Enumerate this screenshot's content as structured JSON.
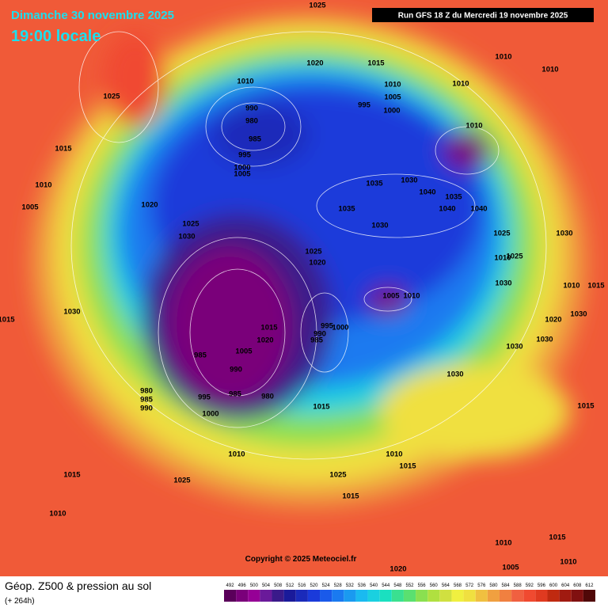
{
  "header": {
    "title": "Dimanche 30 novembre 2025",
    "subtitle": "19:00 locale",
    "run": "Run GFS 18 Z du Mercredi 19 novembre 2025"
  },
  "map": {
    "copyright": "Copyright © 2025 Meteociel.fr",
    "isobar_labels": [
      "1025",
      "1020",
      "1015",
      "1010",
      "1010",
      "1010",
      "1010",
      "1010",
      "1025",
      "990",
      "980",
      "985",
      "995",
      "1000",
      "1005",
      "995",
      "1005",
      "1000",
      "1010",
      "1015",
      "1010",
      "1005",
      "1020",
      "1025",
      "1030",
      "1035",
      "1040",
      "1030",
      "1035",
      "1040",
      "1040",
      "1035",
      "1030",
      "1025",
      "1020",
      "1025",
      "1030",
      "1010",
      "1025",
      "1030",
      "1010",
      "1015",
      "1005",
      "1010",
      "1030",
      "1015",
      "1020",
      "1030",
      "1015",
      "1020",
      "1005",
      "990",
      "995",
      "1000",
      "990",
      "985",
      "985",
      "980",
      "985",
      "990",
      "995",
      "985",
      "980",
      "1000",
      "1015",
      "1030",
      "1030",
      "1030",
      "1015",
      "1010",
      "1015",
      "1025",
      "1010",
      "1025",
      "1010",
      "1015",
      "1015",
      "1010",
      "1015",
      "1005",
      "1010",
      "1020"
    ]
  },
  "footer": {
    "title": "Géop. Z500 & pression au sol",
    "lead": "(+ 264h)",
    "colorbar": {
      "ticks": [
        492,
        496,
        500,
        504,
        508,
        512,
        516,
        520,
        524,
        528,
        532,
        536,
        540,
        544,
        548,
        552,
        556,
        560,
        564,
        568,
        572,
        576,
        580,
        584,
        588,
        592,
        596,
        600,
        604,
        608,
        612
      ],
      "colors": [
        "#5a005a",
        "#7a007a",
        "#960096",
        "#6a1a9a",
        "#3a1a8a",
        "#1a1a9a",
        "#1a2aba",
        "#1a3ada",
        "#1a5aea",
        "#1a7af0",
        "#1a9af0",
        "#1abaf0",
        "#1ad0e0",
        "#1ae0c0",
        "#3ae090",
        "#5ae070",
        "#8ae050",
        "#b0e040",
        "#d0e040",
        "#f0f040",
        "#f0e040",
        "#f0c040",
        "#f0a040",
        "#f08040",
        "#f06040",
        "#f04a30",
        "#e03a20",
        "#c02a10",
        "#a01a10",
        "#801010",
        "#500808"
      ]
    }
  }
}
